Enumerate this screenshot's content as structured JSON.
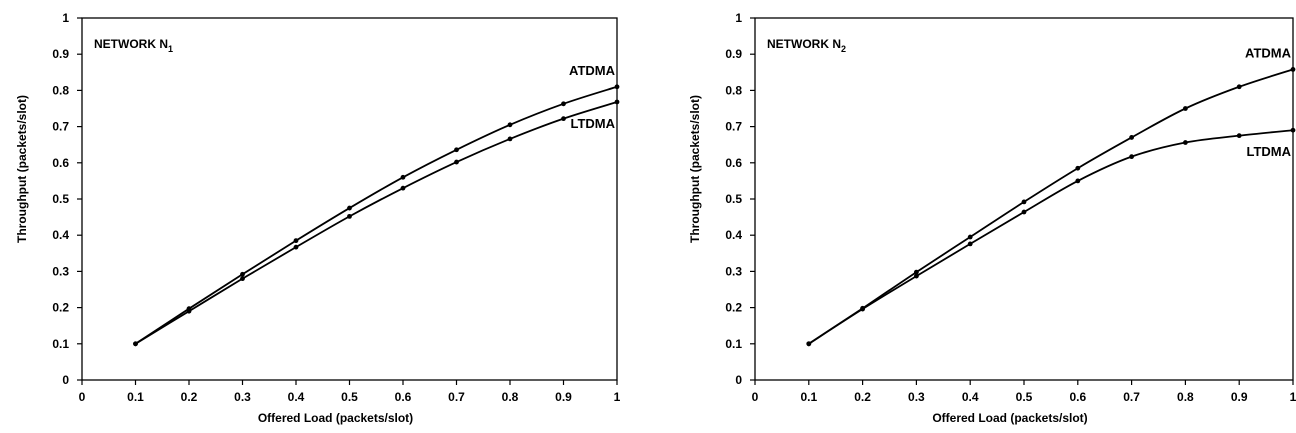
{
  "chart_data": [
    {
      "type": "line",
      "title": "NETWORK N",
      "title_subscript": "1",
      "xlabel": "Offered Load (packets/slot)",
      "ylabel": "Throughput (packets/slot)",
      "xlim": [
        0,
        1
      ],
      "ylim": [
        0,
        1
      ],
      "xticks": [
        "0",
        "0.1",
        "0.2",
        "0.3",
        "0.4",
        "0.5",
        "0.6",
        "0.7",
        "0.8",
        "0.9",
        "1"
      ],
      "yticks": [
        "0",
        "0.1",
        "0.2",
        "0.3",
        "0.4",
        "0.5",
        "0.6",
        "0.7",
        "0.8",
        "0.9",
        "1"
      ],
      "grid": false,
      "x": [
        0.1,
        0.2,
        0.3,
        0.4,
        0.5,
        0.6,
        0.7,
        0.8,
        0.9,
        1.0
      ],
      "series": [
        {
          "name": "ATDMA",
          "values": [
            0.1,
            0.197,
            0.292,
            0.385,
            0.475,
            0.56,
            0.636,
            0.705,
            0.763,
            0.81
          ]
        },
        {
          "name": "LTDMA",
          "values": [
            0.1,
            0.19,
            0.28,
            0.367,
            0.452,
            0.53,
            0.602,
            0.666,
            0.722,
            0.768
          ]
        }
      ]
    },
    {
      "type": "line",
      "title": "NETWORK N",
      "title_subscript": "2",
      "xlabel": "Offered Load (packets/slot)",
      "ylabel": "Throughput (packets/slot)",
      "xlim": [
        0,
        1
      ],
      "ylim": [
        0,
        1
      ],
      "xticks": [
        "0",
        "0.1",
        "0.2",
        "0.3",
        "0.4",
        "0.5",
        "0.6",
        "0.7",
        "0.8",
        "0.9",
        "1"
      ],
      "yticks": [
        "0",
        "0.1",
        "0.2",
        "0.3",
        "0.4",
        "0.5",
        "0.6",
        "0.7",
        "0.8",
        "0.9",
        "1"
      ],
      "grid": false,
      "x": [
        0.1,
        0.2,
        0.3,
        0.4,
        0.5,
        0.6,
        0.7,
        0.8,
        0.9,
        1.0
      ],
      "series": [
        {
          "name": "ATDMA",
          "values": [
            0.1,
            0.198,
            0.298,
            0.395,
            0.492,
            0.585,
            0.67,
            0.75,
            0.81,
            0.858
          ]
        },
        {
          "name": "LTDMA",
          "values": [
            0.1,
            0.196,
            0.287,
            0.376,
            0.464,
            0.55,
            0.617,
            0.656,
            0.675,
            0.69
          ]
        }
      ]
    }
  ]
}
